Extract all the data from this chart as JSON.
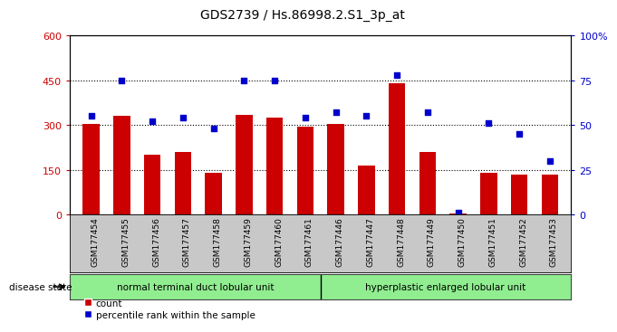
{
  "title": "GDS2739 / Hs.86998.2.S1_3p_at",
  "samples": [
    "GSM177454",
    "GSM177455",
    "GSM177456",
    "GSM177457",
    "GSM177458",
    "GSM177459",
    "GSM177460",
    "GSM177461",
    "GSM177446",
    "GSM177447",
    "GSM177448",
    "GSM177449",
    "GSM177450",
    "GSM177451",
    "GSM177452",
    "GSM177453"
  ],
  "counts": [
    305,
    330,
    200,
    210,
    140,
    335,
    325,
    295,
    305,
    165,
    440,
    210,
    5,
    140,
    135,
    135
  ],
  "percentiles": [
    55,
    75,
    52,
    54,
    48,
    75,
    75,
    54,
    57,
    55,
    78,
    57,
    1,
    51,
    45,
    30
  ],
  "group1_label": "normal terminal duct lobular unit",
  "group2_label": "hyperplastic enlarged lobular unit",
  "group1_count": 8,
  "group2_count": 8,
  "bar_color": "#cc0000",
  "dot_color": "#0000cc",
  "left_ylim": [
    0,
    600
  ],
  "right_ylim": [
    0,
    100
  ],
  "left_yticks": [
    0,
    150,
    300,
    450,
    600
  ],
  "right_yticks": [
    0,
    25,
    50,
    75,
    100
  ],
  "right_yticklabels": [
    "0",
    "25",
    "50",
    "75",
    "100%"
  ],
  "group1_color": "#90ee90",
  "group2_color": "#90ee90",
  "disease_state_label": "disease state",
  "legend_count_label": "count",
  "legend_pct_label": "percentile rank within the sample",
  "tick_area_color": "#c8c8c8",
  "grp_border_color": "#006600",
  "hline_vals": [
    150,
    300,
    450
  ]
}
